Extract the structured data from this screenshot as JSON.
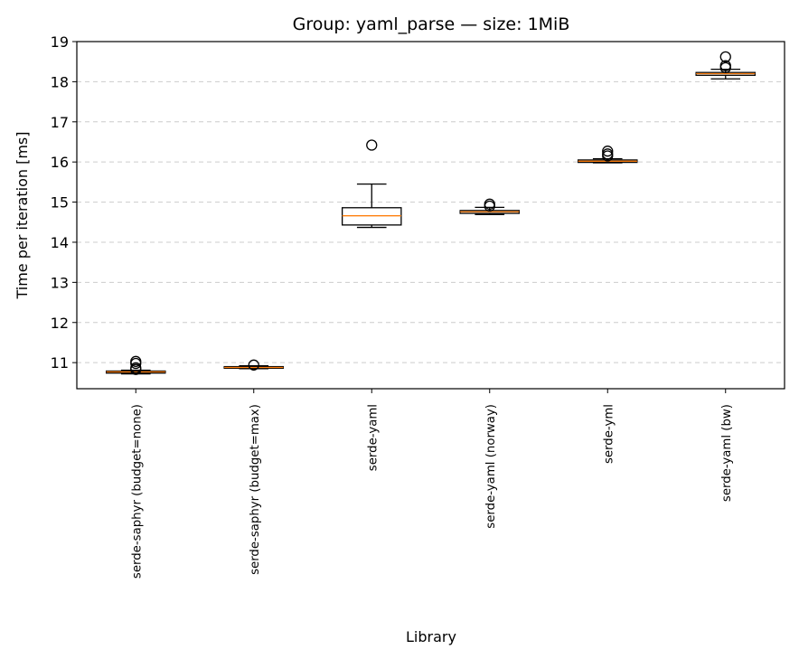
{
  "chart_data": {
    "type": "box",
    "title": "Group: yaml_parse — size: 1MiB",
    "xlabel": "Library",
    "ylabel": "Time per iteration [ms]",
    "ylim": [
      10.35,
      19.0
    ],
    "yticks": [
      11,
      12,
      13,
      14,
      15,
      16,
      17,
      18,
      19
    ],
    "grid": "horizontal-dashed",
    "colors": {
      "box": "#000000",
      "median": "#ff7f0e",
      "grid": "#cccccc"
    },
    "categories": [
      "serde-saphyr (budget=none)",
      "serde-saphyr (budget=max)",
      "serde-yaml",
      "serde-yaml (norway)",
      "serde-yml",
      "serde-yaml (bw)"
    ],
    "boxes": [
      {
        "whislo": 10.72,
        "q1": 10.74,
        "med": 10.77,
        "q3": 10.79,
        "whishi": 10.81,
        "fliers": [
          10.83,
          10.87,
          10.98,
          11.03
        ]
      },
      {
        "whislo": 10.85,
        "q1": 10.86,
        "med": 10.88,
        "q3": 10.9,
        "whishi": 10.92,
        "fliers": [
          10.94
        ]
      },
      {
        "whislo": 14.37,
        "q1": 14.43,
        "med": 14.66,
        "q3": 14.86,
        "whishi": 15.45,
        "fliers": [
          16.42
        ]
      },
      {
        "whislo": 14.69,
        "q1": 14.72,
        "med": 14.76,
        "q3": 14.79,
        "whishi": 14.87,
        "fliers": [
          14.9,
          14.95
        ]
      },
      {
        "whislo": 15.98,
        "q1": 15.99,
        "med": 16.02,
        "q3": 16.05,
        "whishi": 16.08,
        "fliers": [
          16.15,
          16.2,
          16.27
        ]
      },
      {
        "whislo": 18.07,
        "q1": 18.16,
        "med": 18.2,
        "q3": 18.23,
        "whishi": 18.31,
        "fliers": [
          18.35,
          18.4,
          18.62
        ]
      }
    ]
  }
}
